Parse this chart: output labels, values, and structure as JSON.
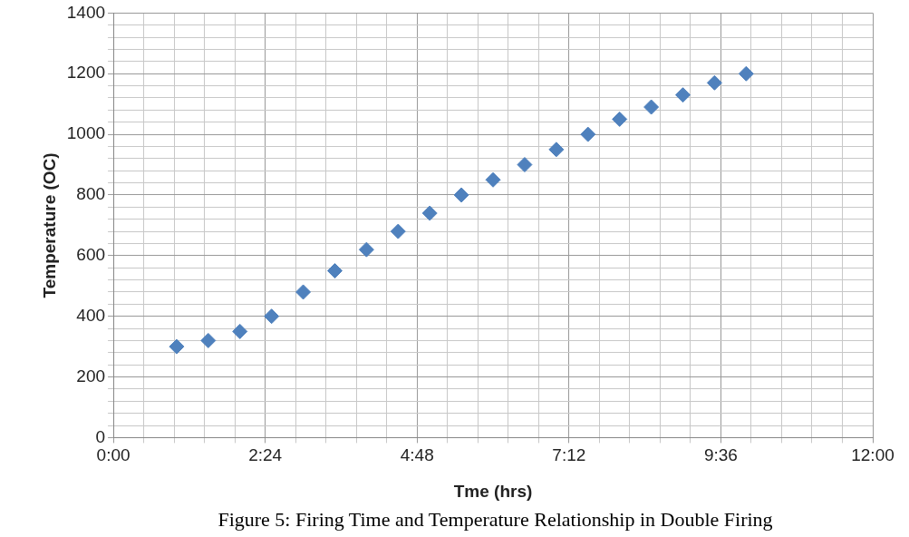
{
  "chart_data": {
    "type": "scatter",
    "xlabel": "Tme (hrs)",
    "ylabel": "Temperature (OC)",
    "annotations": [
      "Figure 5: Firing Time and Temperature Relationship in Double Firing"
    ],
    "x": [
      1,
      1.5,
      2,
      2.5,
      3,
      3.5,
      4,
      4.5,
      5,
      5.5,
      6,
      6.5,
      7,
      7.5,
      8,
      8.5,
      9,
      9.5,
      10
    ],
    "series": [
      {
        "color": "#4f81bd",
        "values": [
          300,
          320,
          350,
          400,
          480,
          550,
          620,
          680,
          740,
          800,
          850,
          900,
          950,
          1000,
          1050,
          1090,
          1130,
          1170,
          1200
        ]
      }
    ],
    "xlim": [
      0,
      12
    ],
    "xticks": [
      {
        "value": 0,
        "label": "0:00"
      },
      {
        "value": 0.48,
        "label": null
      },
      {
        "value": 0.96,
        "label": null
      },
      {
        "value": 1.44,
        "label": null
      },
      {
        "value": 1.92,
        "label": null
      },
      {
        "value": 2.4,
        "label": "2:24"
      },
      {
        "value": 2.88,
        "label": null
      },
      {
        "value": 3.36,
        "label": null
      },
      {
        "value": 3.84,
        "label": null
      },
      {
        "value": 4.32,
        "label": null
      },
      {
        "value": 4.8,
        "label": "4:48"
      },
      {
        "value": 5.28,
        "label": null
      },
      {
        "value": 5.76,
        "label": null
      },
      {
        "value": 6.24,
        "label": null
      },
      {
        "value": 6.72,
        "label": null
      },
      {
        "value": 7.2,
        "label": "7:12"
      },
      {
        "value": 7.68,
        "label": null
      },
      {
        "value": 8.16,
        "label": null
      },
      {
        "value": 8.64,
        "label": null
      },
      {
        "value": 9.12,
        "label": null
      },
      {
        "value": 9.6,
        "label": "9:36"
      },
      {
        "value": 10.08,
        "label": null
      },
      {
        "value": 10.56,
        "label": null
      },
      {
        "value": 11.04,
        "label": null
      },
      {
        "value": 11.52,
        "label": null
      },
      {
        "value": 12,
        "label": "12:00"
      }
    ],
    "ylim": [
      0,
      1400
    ],
    "yticks": [
      0,
      {
        "value": 40,
        "label": null
      },
      {
        "value": 80,
        "label": null
      },
      {
        "value": 120,
        "label": null
      },
      {
        "value": 160,
        "label": null
      },
      200,
      {
        "value": 240,
        "label": null
      },
      {
        "value": 280,
        "label": null
      },
      {
        "value": 320,
        "label": null
      },
      {
        "value": 360,
        "label": null
      },
      400,
      {
        "value": 440,
        "label": null
      },
      {
        "value": 480,
        "label": null
      },
      {
        "value": 520,
        "label": null
      },
      {
        "value": 560,
        "label": null
      },
      600,
      {
        "value": 640,
        "label": null
      },
      {
        "value": 680,
        "label": null
      },
      {
        "value": 720,
        "label": null
      },
      {
        "value": 760,
        "label": null
      },
      800,
      {
        "value": 840,
        "label": null
      },
      {
        "value": 880,
        "label": null
      },
      {
        "value": 920,
        "label": null
      },
      {
        "value": 960,
        "label": null
      },
      1000,
      {
        "value": 1040,
        "label": null
      },
      {
        "value": 1080,
        "label": null
      },
      {
        "value": 1120,
        "label": null
      },
      {
        "value": 1160,
        "label": null
      },
      1200,
      {
        "value": 1240,
        "label": null
      },
      {
        "value": 1280,
        "label": null
      },
      {
        "value": 1320,
        "label": null
      },
      {
        "value": 1360,
        "label": null
      },
      1400
    ],
    "grid": true,
    "marker": "diamond",
    "legend": false
  }
}
